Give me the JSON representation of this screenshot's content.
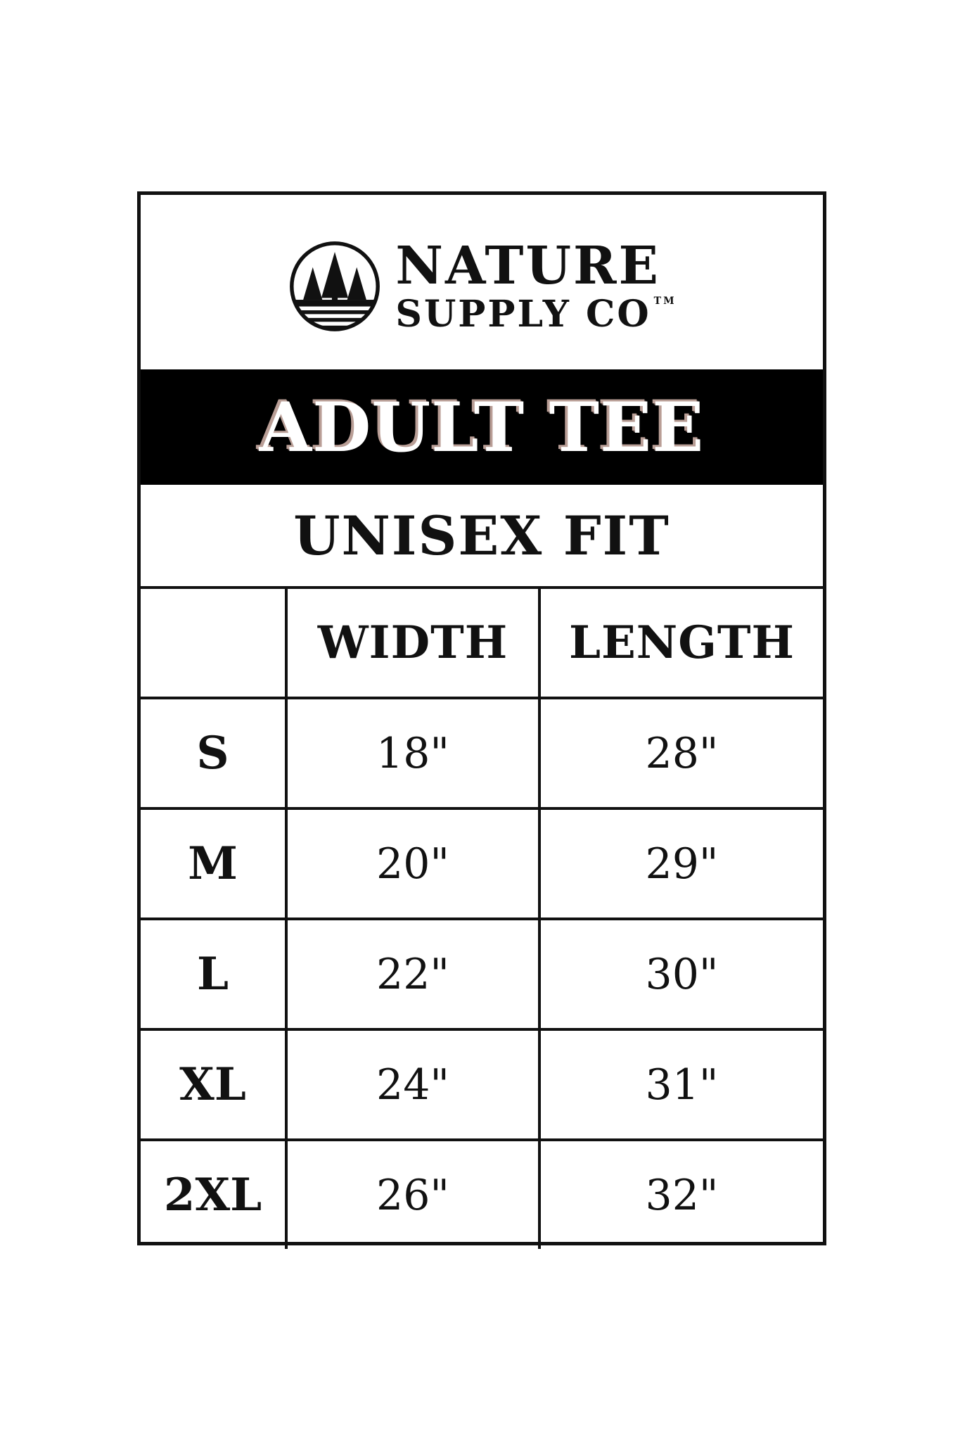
{
  "logo": {
    "line1": "NATURE",
    "line2": "SUPPLY CO",
    "trademark": "TM",
    "icon": "trees-in-circle-logo"
  },
  "title": "ADULT TEE",
  "subtitle": "UNISEX FIT",
  "table": {
    "headers": [
      "",
      "WIDTH",
      "LENGTH"
    ],
    "rows": [
      {
        "size": "S",
        "width": "18\"",
        "length": "28\""
      },
      {
        "size": "M",
        "width": "20\"",
        "length": "29\""
      },
      {
        "size": "L",
        "width": "22\"",
        "length": "30\""
      },
      {
        "size": "XL",
        "width": "24\"",
        "length": "31\""
      },
      {
        "size": "2XL",
        "width": "26\"",
        "length": "32\""
      }
    ]
  }
}
